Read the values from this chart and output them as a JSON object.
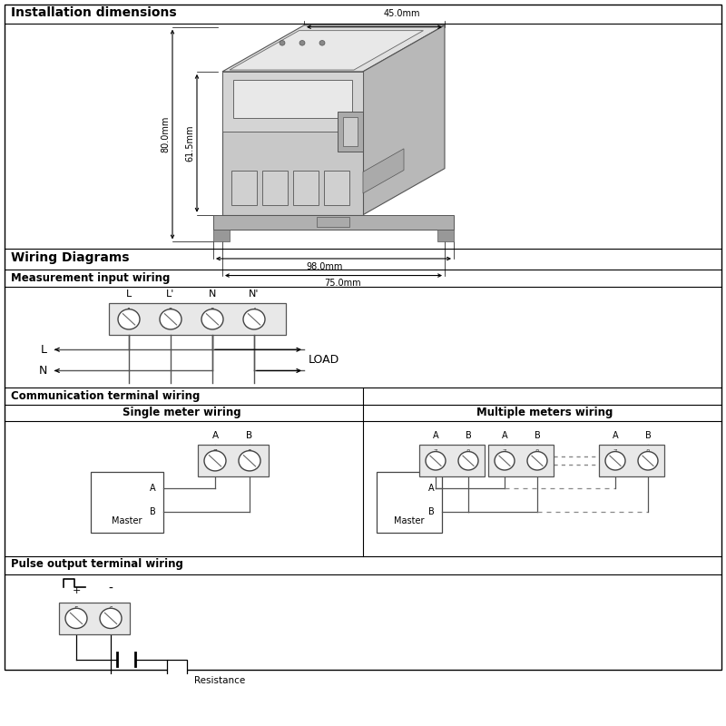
{
  "title_installation": "Installation dimensions",
  "title_wiring": "Wiring Diagrams",
  "title_measurement": "Measurement input wiring",
  "title_communication": "Communication terminal wiring",
  "title_single": "Single meter wiring",
  "title_multiple": "Multiple meters wiring",
  "title_pulse": "Pulse output terminal wiring",
  "dim_45": "45.0mm",
  "dim_80": "80.0mm",
  "dim_615": "61.5mm",
  "dim_98": "98.0mm",
  "dim_75": "75.0mm",
  "bg_color": "#ffffff",
  "line_color": "#000000",
  "gray_light": "#d8d8d8",
  "gray_mid": "#b8b8b8",
  "gray_dark": "#989898",
  "gray_device": "#c0c0c0"
}
